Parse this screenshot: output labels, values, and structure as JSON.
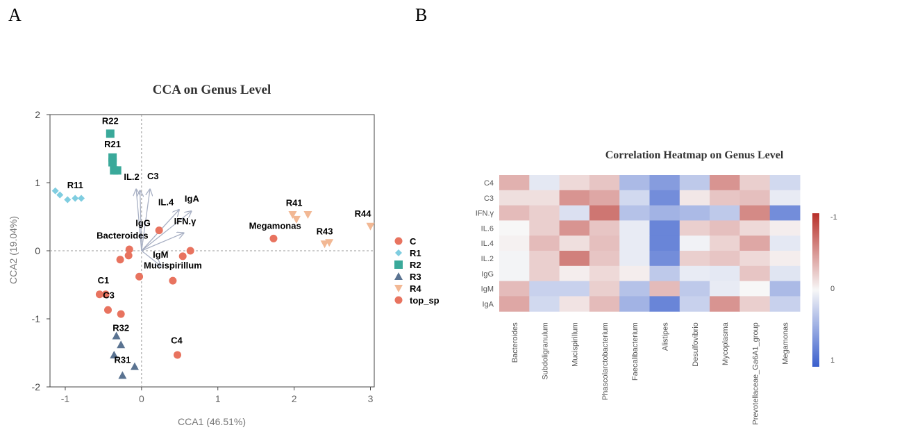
{
  "panel_labels": [
    "A",
    "B"
  ],
  "chart_data": [
    {
      "type": "scatter",
      "title": "CCA on Genus Level",
      "xlabel": "CCA1 (46.51%)",
      "ylabel": "CCA2 (19.04%)",
      "xlim": [
        -1.2,
        3.05
      ],
      "ylim": [
        -2,
        2
      ],
      "xticks": [
        -1,
        0,
        1,
        2,
        3
      ],
      "yticks": [
        -2,
        -1,
        0,
        1,
        2
      ],
      "legend_position": "right",
      "series": [
        {
          "name": "C",
          "marker": "circle",
          "color": "#e8735f",
          "points": [
            [
              -0.55,
              -0.64
            ],
            [
              -0.47,
              -0.64
            ],
            [
              -0.44,
              -0.87
            ],
            [
              -0.27,
              -0.93
            ],
            [
              0.47,
              -1.53
            ]
          ]
        },
        {
          "name": "R1",
          "marker": "diamond",
          "color": "#7fcde0",
          "points": [
            [
              -1.13,
              0.88
            ],
            [
              -1.07,
              0.82
            ],
            [
              -0.97,
              0.75
            ],
            [
              -0.87,
              0.77
            ],
            [
              -0.79,
              0.77
            ]
          ]
        },
        {
          "name": "R2",
          "marker": "square",
          "color": "#3aa99a",
          "points": [
            [
              -0.41,
              1.72
            ],
            [
              -0.38,
              1.37
            ],
            [
              -0.38,
              1.3
            ],
            [
              -0.36,
              1.18
            ],
            [
              -0.32,
              1.18
            ]
          ]
        },
        {
          "name": "R3",
          "marker": "triangle",
          "color": "#5a7391",
          "points": [
            [
              -0.33,
              -1.25
            ],
            [
              -0.27,
              -1.38
            ],
            [
              -0.36,
              -1.53
            ],
            [
              -0.09,
              -1.7
            ],
            [
              -0.25,
              -1.83
            ]
          ]
        },
        {
          "name": "R4",
          "marker": "triangle-down",
          "color": "#f2b894",
          "points": [
            [
              1.98,
              0.53
            ],
            [
              2.03,
              0.46
            ],
            [
              2.18,
              0.53
            ],
            [
              2.4,
              0.1
            ],
            [
              2.46,
              0.12
            ],
            [
              3.0,
              0.36
            ]
          ]
        },
        {
          "name": "top_sp",
          "marker": "circle",
          "color": "#e8735f",
          "points": [
            [
              -0.16,
              0.02
            ],
            [
              -0.17,
              -0.07
            ],
            [
              -0.28,
              -0.13
            ],
            [
              0.23,
              0.3
            ],
            [
              0.54,
              -0.08
            ],
            [
              0.64,
              0.0
            ],
            [
              -0.03,
              -0.38
            ],
            [
              0.41,
              -0.44
            ],
            [
              1.73,
              0.18
            ]
          ]
        }
      ],
      "point_labels": [
        {
          "text": "R22",
          "x": -0.41,
          "y": 1.86
        },
        {
          "text": "R21",
          "x": -0.38,
          "y": 1.52
        },
        {
          "text": "R11",
          "x": -0.87,
          "y": 0.92
        },
        {
          "text": "R32",
          "x": -0.27,
          "y": -1.18
        },
        {
          "text": "R31",
          "x": -0.25,
          "y": -1.65
        },
        {
          "text": "R41",
          "x": 2.0,
          "y": 0.66
        },
        {
          "text": "R43",
          "x": 2.4,
          "y": 0.24
        },
        {
          "text": "R44",
          "x": 2.9,
          "y": 0.5
        },
        {
          "text": "C1",
          "x": -0.5,
          "y": -0.48
        },
        {
          "text": "C3",
          "x": -0.43,
          "y": -0.7
        },
        {
          "text": "C4",
          "x": 0.46,
          "y": -1.36
        },
        {
          "text": "Megamonas",
          "x": 1.75,
          "y": 0.32
        },
        {
          "text": "Bacteroides",
          "x": -0.25,
          "y": 0.18
        },
        {
          "text": "Mucispirillum",
          "x": 0.41,
          "y": -0.26
        }
      ],
      "arrows": [
        {
          "name": "IL.2",
          "x": -0.07,
          "y": 0.9
        },
        {
          "name": "C3",
          "x": 0.11,
          "y": 0.9
        },
        {
          "name": "IL.4",
          "x": 0.49,
          "y": 0.6
        },
        {
          "name": "IgA",
          "x": 0.65,
          "y": 0.58
        },
        {
          "name": "IFN.γ",
          "x": 0.55,
          "y": 0.26
        },
        {
          "name": "IgG",
          "x": -0.02,
          "y": 0.88
        },
        {
          "name": "IgM",
          "x": 0.25,
          "y": -0.22
        }
      ]
    },
    {
      "type": "heatmap",
      "title": "Correlation Heatmap on Genus Level",
      "rows": [
        "C4",
        "C3",
        "IFN.γ",
        "IL.6",
        "IL.4",
        "IL.2",
        "IgG",
        "IgM",
        "IgA"
      ],
      "columns": [
        "Bacteroides",
        "Subdoligranulum",
        "Mucispirillum",
        "Phascolarctobacterium",
        "Faecalibacterium",
        "Alistipes",
        "Desulfovibrio",
        "Mycoplasma",
        "Prevotellaceae_Ga6A1_group",
        "Megamonas"
      ],
      "values": [
        [
          -0.35,
          0.1,
          -0.15,
          -0.25,
          0.4,
          0.6,
          0.3,
          -0.5,
          -0.2,
          0.2
        ],
        [
          -0.12,
          -0.12,
          -0.5,
          -0.4,
          0.2,
          0.7,
          -0.08,
          -0.25,
          -0.28,
          0.08
        ],
        [
          -0.3,
          -0.2,
          0.15,
          -0.65,
          0.35,
          0.45,
          0.4,
          0.3,
          -0.55,
          0.7
        ],
        [
          0,
          -0.2,
          -0.5,
          -0.25,
          0.08,
          0.75,
          -0.2,
          -0.28,
          -0.15,
          -0.05
        ],
        [
          -0.03,
          -0.3,
          -0.12,
          -0.28,
          0.08,
          0.75,
          0.03,
          -0.18,
          -0.4,
          0.1
        ],
        [
          0.02,
          -0.2,
          -0.6,
          -0.25,
          0.08,
          0.7,
          -0.2,
          -0.25,
          -0.15,
          -0.05
        ],
        [
          0.02,
          -0.2,
          -0.05,
          -0.15,
          -0.05,
          0.3,
          0.08,
          0.1,
          -0.25,
          0.12
        ],
        [
          -0.3,
          0.25,
          0.25,
          -0.2,
          0.35,
          -0.3,
          0.3,
          0.08,
          0,
          0.4
        ],
        [
          -0.4,
          0.2,
          -0.1,
          -0.3,
          0.45,
          0.75,
          0.25,
          -0.5,
          -0.2,
          0.25
        ]
      ],
      "colorbar_labels": [
        "-1",
        "0",
        "1"
      ],
      "colors": {
        "neg": "#b8302a",
        "mid": "#f7f7f7",
        "pos": "#3a5fcd"
      }
    }
  ]
}
